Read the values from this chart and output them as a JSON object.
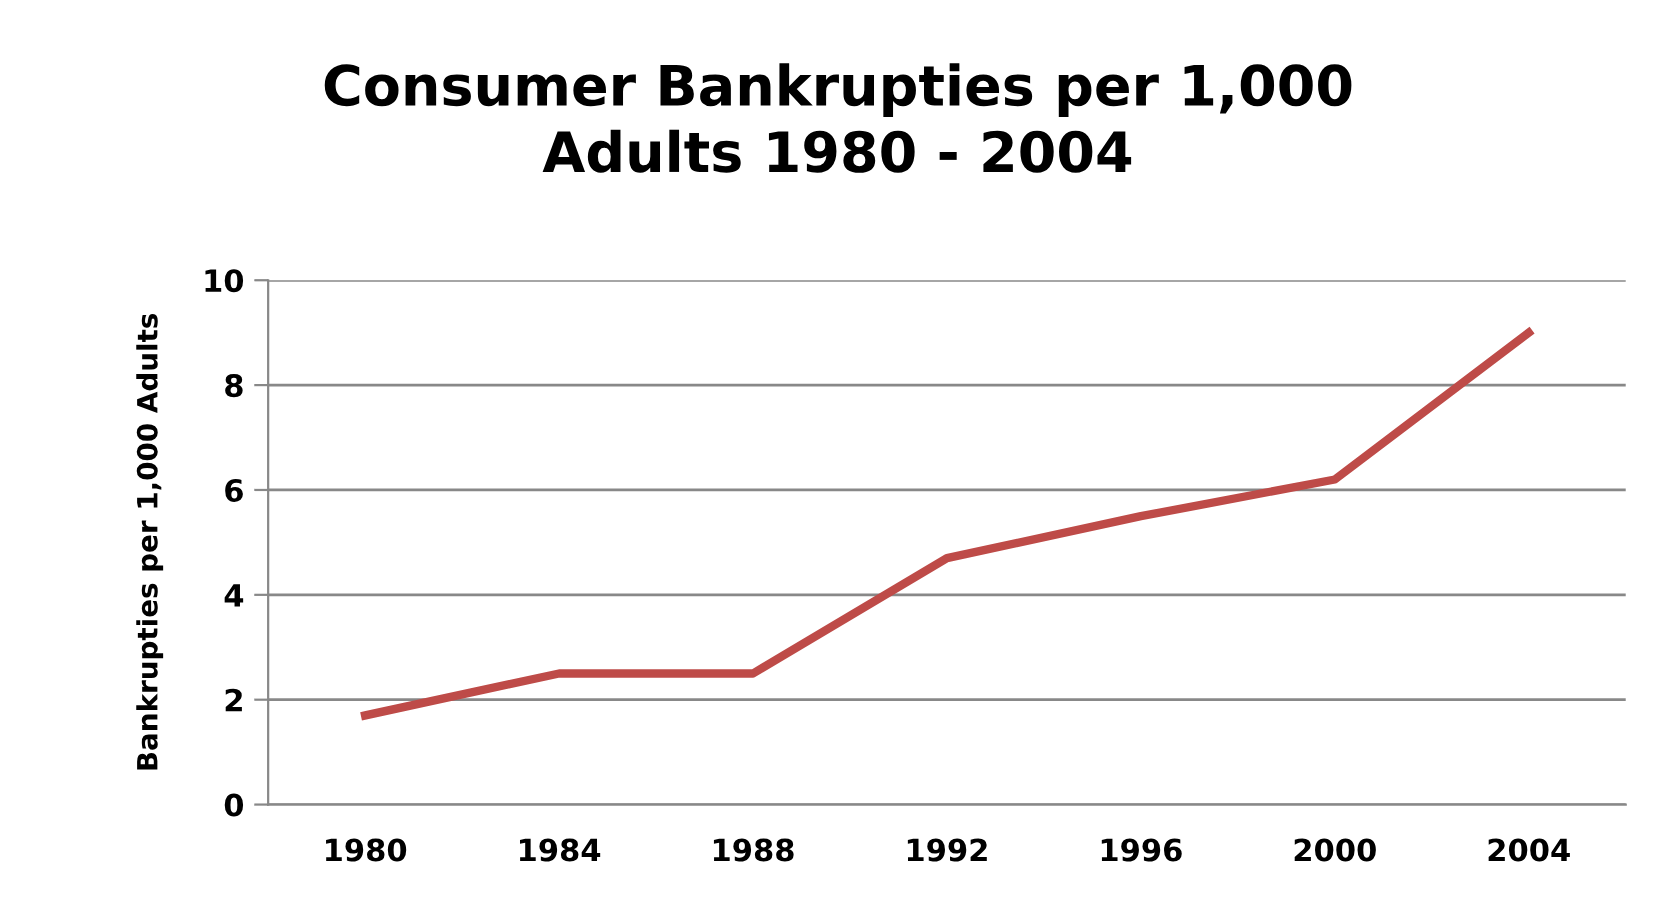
{
  "chart_data": {
    "type": "line",
    "title": "Consumer Bankrupties per 1,000\nAdults 1980 - 2004",
    "ylabel": "Bankrupties per 1,000 Adults",
    "categories": [
      "1980",
      "1984",
      "1988",
      "1992",
      "1996",
      "2000",
      "2004"
    ],
    "series": [
      {
        "color": "#be4b48",
        "values": [
          1.7,
          2.5,
          2.5,
          4.7,
          5.5,
          6.2,
          9.0
        ]
      }
    ],
    "ylim": [
      0,
      10
    ],
    "yticks": [
      0,
      2,
      4,
      6,
      8,
      10
    ],
    "grid": "y",
    "marker": "none",
    "line_style": "solid"
  }
}
